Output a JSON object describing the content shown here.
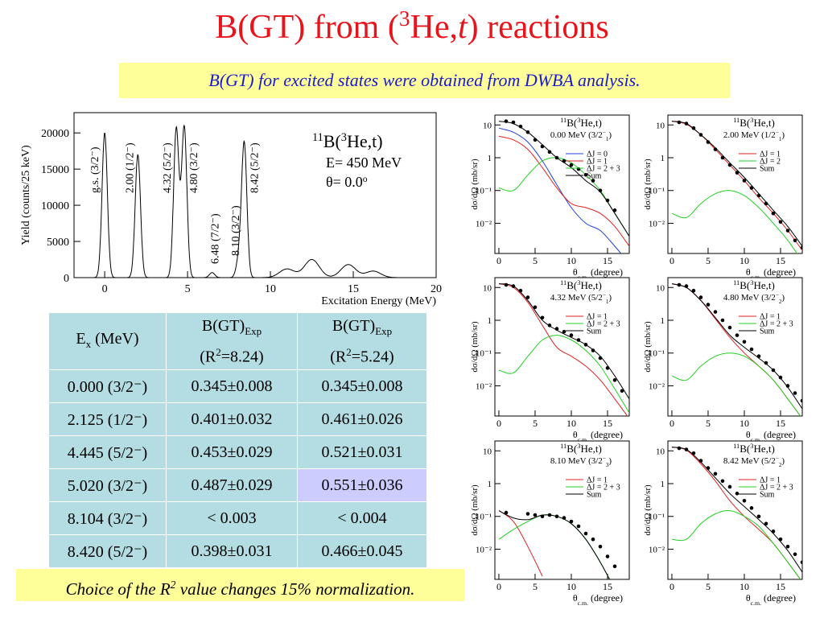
{
  "title": [
    {
      "t": "B(GT) from ("
    },
    {
      "t": "3",
      "s": "sup"
    },
    {
      "t": "He,"
    },
    {
      "t": "t",
      "s": "i"
    },
    {
      "t": ") reactions"
    }
  ],
  "subtitle": "B(GT) for excited states were obtained from DWBA analysis.",
  "spectrum": {
    "type": "line",
    "y_label": "Yield (counts/25 keV)",
    "x_label": "Excitation Energy (MeV)",
    "xlim": [
      -1.85,
      20
    ],
    "ylim": [
      0,
      22800
    ],
    "xticks": [
      0,
      5,
      10,
      15,
      20
    ],
    "yticks": [
      0,
      5000,
      10000,
      15000,
      20000
    ],
    "color": "#000000",
    "peaks": {
      "x": [
        0,
        2.0,
        4.32,
        4.8,
        6.48,
        8.1,
        8.42
      ],
      "values": [
        20000,
        17000,
        20600,
        20800,
        700,
        2500,
        18500
      ],
      "labels": [
        "g.s. (3/2⁻)",
        "2.00 (1/2⁻)",
        "4.32 (5/2⁻)",
        "4.80 (3/2⁻)",
        "6.48 (7/2⁻)",
        "8.10 (3/2⁻)",
        "8.42 (5/2⁻)"
      ]
    },
    "bumps": {
      "x": [
        11,
        12.5,
        14.7,
        16.2
      ],
      "values": [
        1200,
        2500,
        1800,
        900
      ]
    },
    "inset": [
      [
        {
          "t": "11",
          "s": "sup"
        },
        {
          "t": "B("
        },
        {
          "t": "3",
          "s": "sup"
        },
        {
          "t": "He,t)"
        }
      ],
      [
        {
          "t": "E= 450 MeV"
        }
      ],
      [
        {
          "t": "θ= 0.0"
        },
        {
          "t": "o",
          "s": "sup"
        }
      ]
    ]
  },
  "table": {
    "header": [
      [
        [
          {
            "t": "E"
          },
          {
            "t": "x",
            "s": "sub"
          },
          {
            "t": " (MeV)"
          }
        ]
      ],
      [
        [
          {
            "t": "B(GT)"
          },
          {
            "t": "Exp",
            "s": "sub"
          }
        ],
        [
          {
            "t": "(R"
          },
          {
            "t": "2",
            "s": "sup"
          },
          {
            "t": "=8.24)"
          }
        ]
      ],
      [
        [
          {
            "t": "B(GT)"
          },
          {
            "t": "Exp",
            "s": "sub"
          }
        ],
        [
          {
            "t": "(R"
          },
          {
            "t": "2",
            "s": "sup"
          },
          {
            "t": "=5.24)"
          }
        ]
      ]
    ],
    "rows": [
      [
        "0.000 (3/2⁻)",
        "0.345±0.008",
        "0.345±0.008"
      ],
      [
        "2.125 (1/2⁻)",
        "0.401±0.032",
        "0.461±0.026"
      ],
      [
        "4.445 (5/2⁻)",
        "0.453±0.029",
        "0.521±0.031"
      ],
      [
        "5.020 (3/2⁻)",
        "0.487±0.029",
        "0.551±0.036"
      ],
      [
        "8.104 (3/2⁻)",
        "< 0.003",
        "< 0.004"
      ],
      [
        "8.420 (5/2⁻)",
        "0.398±0.031",
        "0.466±0.045"
      ]
    ],
    "highlight": [
      3,
      2
    ]
  },
  "panels_common": {
    "x_label": [
      {
        "t": "θ"
      },
      {
        "t": "c.m.",
        "s": "sub"
      },
      {
        "t": " (degree)"
      }
    ],
    "y_label": "dσ/dΩ (mb/sr)",
    "log_y": true,
    "xlim": [
      -0.55,
      18
    ],
    "ylim": [
      0.0012,
      20
    ],
    "xticks": [
      0,
      5,
      10,
      15
    ],
    "yticks": [
      {
        "value": 0.01,
        "label": "10⁻²"
      },
      {
        "value": 0.1,
        "label": "10⁻¹"
      },
      1,
      10
    ],
    "curve_x": [
      0,
      2,
      4,
      6,
      8,
      10,
      12,
      14,
      16,
      18
    ],
    "points_x": [
      1,
      2,
      3,
      4,
      5,
      6,
      7,
      8,
      9,
      10,
      11,
      12,
      13,
      14,
      15,
      16,
      17,
      18
    ]
  },
  "panels": [
    {
      "title": [
        {
          "t": "11",
          "s": "sup"
        },
        {
          "t": "B("
        },
        {
          "t": "3",
          "s": "sup"
        },
        {
          "t": "He,t)"
        }
      ],
      "subtitle": [
        {
          "t": "0.00 MeV (3/2"
        },
        {
          "t": "−",
          "s": "sup"
        },
        {
          "t": "1",
          "s": "sub"
        },
        {
          "t": ")"
        }
      ],
      "curves": [
        {
          "name": "ΔJ = 0",
          "color": "#2040e0",
          "values": [
            8,
            6,
            3,
            0.8,
            0.15,
            0.03,
            0.01,
            0.006,
            0.002,
            0.0006
          ]
        },
        {
          "name": "ΔJ = 1",
          "color": "#e02020",
          "values": [
            4.5,
            3.5,
            1.8,
            0.5,
            0.12,
            0.04,
            0.03,
            0.02,
            0.008,
            0.002
          ]
        },
        {
          "name": "ΔJ = 2 + 3",
          "color": "#20d020",
          "values": [
            0.12,
            0.1,
            0.3,
            0.8,
            1,
            0.7,
            0.3,
            0.1,
            0.02,
            0.004
          ]
        },
        {
          "name": "Sum",
          "color": "#000000",
          "values": [
            13,
            11,
            6,
            2.5,
            1,
            0.5,
            0.2,
            0.09,
            0.02,
            0.004
          ]
        }
      ],
      "points": [
        13,
        12,
        9,
        6,
        3.5,
        2.2,
        1.5,
        1,
        0.8,
        0.6,
        0.45,
        0.3,
        0.2,
        0.1,
        0.05,
        0.025,
        null,
        null
      ]
    },
    {
      "title": [
        {
          "t": "11",
          "s": "sup"
        },
        {
          "t": "B("
        },
        {
          "t": "3",
          "s": "sup"
        },
        {
          "t": "He,t)"
        }
      ],
      "subtitle": [
        {
          "t": "2.00 MeV (1/2"
        },
        {
          "t": "−",
          "s": "sup"
        },
        {
          "t": "1",
          "s": "sub"
        },
        {
          "t": ")"
        }
      ],
      "curves": [
        {
          "name": "ΔJ = 1",
          "color": "#e02020",
          "values": [
            13,
            10.5,
            5,
            1.8,
            0.6,
            0.2,
            0.06,
            0.02,
            0.006,
            0.0015
          ]
        },
        {
          "name": "ΔJ = 2",
          "color": "#20d020",
          "values": [
            0.02,
            0.015,
            0.04,
            0.08,
            0.1,
            0.07,
            0.03,
            0.01,
            0.003,
            0.0007
          ]
        },
        {
          "name": "Sum",
          "color": "#000000",
          "values": [
            13,
            11,
            5,
            2,
            0.7,
            0.25,
            0.08,
            0.025,
            0.008,
            0.002
          ]
        }
      ],
      "points": [
        12,
        11,
        8,
        5,
        3,
        1.8,
        1,
        0.6,
        0.35,
        0.2,
        0.12,
        0.07,
        0.04,
        0.02,
        0.011,
        0.006,
        0.003,
        0.0018
      ]
    },
    {
      "title": [
        {
          "t": "11",
          "s": "sup"
        },
        {
          "t": "B("
        },
        {
          "t": "3",
          "s": "sup"
        },
        {
          "t": "He,t)"
        }
      ],
      "subtitle": [
        {
          "t": "4.32 MeV (5/2"
        },
        {
          "t": "−",
          "s": "sup"
        },
        {
          "t": "1",
          "s": "sub"
        },
        {
          "t": ")"
        }
      ],
      "curves": [
        {
          "name": "ΔJ = 1",
          "color": "#e02020",
          "values": [
            13,
            10,
            3.5,
            0.7,
            0.15,
            0.08,
            0.04,
            0.015,
            0.004,
            0.001
          ]
        },
        {
          "name": "ΔJ = 2 + 3",
          "color": "#20d020",
          "values": [
            0.03,
            0.025,
            0.08,
            0.25,
            0.35,
            0.25,
            0.12,
            0.04,
            0.008,
            0.0015
          ]
        },
        {
          "name": "Sum",
          "color": "#000000",
          "values": [
            13,
            11,
            4,
            1,
            0.5,
            0.3,
            0.18,
            0.08,
            0.02,
            0.004
          ]
        }
      ],
      "points": [
        12,
        11,
        8,
        5,
        2.5,
        1.2,
        0.7,
        0.55,
        0.45,
        0.35,
        0.25,
        0.18,
        0.12,
        0.07,
        0.035,
        0.015,
        0.007,
        null
      ]
    },
    {
      "title": [
        {
          "t": "11",
          "s": "sup"
        },
        {
          "t": "B("
        },
        {
          "t": "3",
          "s": "sup"
        },
        {
          "t": "He,t)"
        }
      ],
      "subtitle": [
        {
          "t": "4.80 MeV (3/2"
        },
        {
          "t": "−",
          "s": "sup"
        },
        {
          "t": "2",
          "s": "sub"
        },
        {
          "t": ")"
        }
      ],
      "curves": [
        {
          "name": "ΔJ = 1",
          "color": "#e02020",
          "values": [
            13,
            10,
            4,
            1.1,
            0.3,
            0.1,
            0.04,
            0.015,
            0.004,
            0.001
          ]
        },
        {
          "name": "ΔJ = 2 + 3",
          "color": "#20d020",
          "values": [
            0.02,
            0.015,
            0.04,
            0.08,
            0.1,
            0.08,
            0.04,
            0.015,
            0.004,
            0.001
          ]
        },
        {
          "name": "Sum",
          "color": "#000000",
          "values": [
            13,
            10,
            4,
            1.2,
            0.35,
            0.15,
            0.07,
            0.03,
            0.009,
            0.002
          ]
        }
      ],
      "points": [
        12,
        11,
        8,
        5,
        3,
        1.8,
        1,
        0.6,
        0.35,
        0.22,
        0.13,
        0.08,
        0.05,
        0.03,
        0.018,
        0.01,
        0.006,
        0.0035
      ]
    },
    {
      "title": [
        {
          "t": "11",
          "s": "sup"
        },
        {
          "t": "B("
        },
        {
          "t": "3",
          "s": "sup"
        },
        {
          "t": "He,t)"
        }
      ],
      "subtitle": [
        {
          "t": "8.10 MeV (3/2"
        },
        {
          "t": "−",
          "s": "sup"
        },
        {
          "t": "3",
          "s": "sub"
        },
        {
          "t": ")"
        }
      ],
      "curves": [
        {
          "name": "ΔJ = 1",
          "color": "#e02020",
          "values": [
            0.15,
            0.07,
            0.012,
            0.0015,
            null,
            null,
            null,
            null,
            null,
            null
          ]
        },
        {
          "name": "ΔJ = 2 + 3",
          "color": "#20d020",
          "values": [
            0.02,
            0.04,
            0.07,
            0.11,
            0.1,
            0.06,
            0.02,
            0.004,
            0.0006,
            null
          ]
        },
        {
          "name": "Sum",
          "color": "#000000",
          "values": [
            0.15,
            0.09,
            0.08,
            0.11,
            0.1,
            0.06,
            0.02,
            0.004,
            0.0006,
            null
          ]
        }
      ],
      "points": [
        0.13,
        null,
        null,
        0.12,
        0.11,
        0.1,
        0.11,
        0.1,
        0.09,
        0.07,
        0.05,
        0.03,
        0.02,
        0.012,
        0.006,
        0.003,
        null,
        null
      ]
    },
    {
      "title": [
        {
          "t": "11",
          "s": "sup"
        },
        {
          "t": "B("
        },
        {
          "t": "3",
          "s": "sup"
        },
        {
          "t": "He,t)"
        }
      ],
      "subtitle": [
        {
          "t": "8.42 MeV (5/2"
        },
        {
          "t": "−",
          "s": "sup"
        },
        {
          "t": "2",
          "s": "sub"
        },
        {
          "t": ")"
        }
      ],
      "curves": [
        {
          "name": "ΔJ = 1",
          "color": "#e02020",
          "values": [
            13,
            10.5,
            4,
            1.2,
            0.3,
            0.1,
            0.04,
            0.015,
            0.004,
            0.001
          ]
        },
        {
          "name": "ΔJ = 2 + 3",
          "color": "#20d020",
          "values": [
            0.02,
            0.02,
            0.06,
            0.12,
            0.15,
            0.1,
            0.05,
            0.015,
            0.004,
            0.001
          ]
        },
        {
          "name": "Sum",
          "color": "#000000",
          "values": [
            13,
            11,
            4.5,
            1.5,
            0.5,
            0.2,
            0.08,
            0.03,
            0.009,
            0.002
          ]
        }
      ],
      "points": [
        12,
        11,
        8.5,
        5,
        3,
        2,
        1.2,
        0.8,
        0.5,
        0.3,
        0.18,
        0.1,
        0.06,
        0.035,
        0.02,
        0.012,
        0.007,
        0.004
      ]
    }
  ],
  "footer": [
    {
      "t": "Choice of the R"
    },
    {
      "t": "2",
      "s": "sup"
    },
    {
      "t": " value changes 15% normalization."
    }
  ]
}
